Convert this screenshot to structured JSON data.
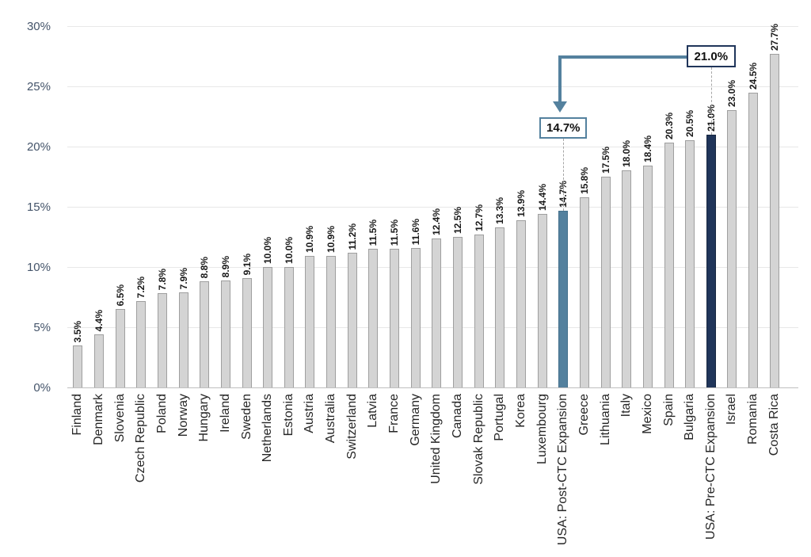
{
  "chart_data": {
    "type": "bar",
    "yticks": [
      "0%",
      "5%",
      "10%",
      "15%",
      "20%",
      "25%",
      "30%"
    ],
    "ylim": [
      0,
      30
    ],
    "unit": "percent",
    "grid": "horizontal",
    "categories": [
      "Finland",
      "Denmark",
      "Slovenia",
      "Czech Republic",
      "Poland",
      "Norway",
      "Hungary",
      "Ireland",
      "Sweden",
      "Netherlands",
      "Estonia",
      "Austria",
      "Australia",
      "Switzerland",
      "Latvia",
      "France",
      "Germany",
      "United Kingdom",
      "Canada",
      "Slovak Republic",
      "Portugal",
      "Korea",
      "Luxembourg",
      "USA: Post-CTC Expansion",
      "Greece",
      "Lithuania",
      "Italy",
      "Mexico",
      "Spain",
      "Bulgaria",
      "USA: Pre-CTC Expansion",
      "Israel",
      "Romania",
      "Costa Rica"
    ],
    "values": [
      3.5,
      4.4,
      6.5,
      7.2,
      7.8,
      7.9,
      8.8,
      8.9,
      9.1,
      10.0,
      10.0,
      10.9,
      10.9,
      11.2,
      11.5,
      11.5,
      11.6,
      12.4,
      12.5,
      12.7,
      13.3,
      13.9,
      14.4,
      14.7,
      15.8,
      17.5,
      18.0,
      18.4,
      20.3,
      20.5,
      21.0,
      23.0,
      24.5,
      27.7
    ],
    "value_labels": [
      "3.5%",
      "4.4%",
      "6.5%",
      "7.2%",
      "7.8%",
      "7.9%",
      "8.8%",
      "8.9%",
      "9.1%",
      "10.0%",
      "10.0%",
      "10.9%",
      "10.9%",
      "11.2%",
      "11.5%",
      "11.5%",
      "11.6%",
      "12.4%",
      "12.5%",
      "12.7%",
      "13.3%",
      "13.9%",
      "14.4%",
      "14.7%",
      "15.8%",
      "17.5%",
      "18.0%",
      "18.4%",
      "20.3%",
      "20.5%",
      "21.0%",
      "23.0%",
      "24.5%",
      "27.7%"
    ],
    "highlights": [
      {
        "index": 23,
        "label": "USA: Post-CTC Expansion",
        "color": "#54819e",
        "border": "#43708c"
      },
      {
        "index": 30,
        "label": "USA: Pre-CTC Expansion",
        "color": "#20355a",
        "border": "#16263f"
      }
    ],
    "annotations": [
      {
        "label": "14.7%",
        "index": 23,
        "border_color": "#54819e"
      },
      {
        "label": "21.0%",
        "index": 30,
        "border_color": "#20355a"
      }
    ],
    "arrow": {
      "from_index": 30,
      "to_index": 23,
      "color": "#54819e"
    },
    "colors": {
      "bar_fill": "#d4d4d4",
      "bar_border": "#9f9f9f",
      "gridline": "#e8e8e8",
      "axis_line": "#bfbfbf",
      "leader_line": "#a6a6a6",
      "ytick_text": "#44546a",
      "category_text": "#262626",
      "value_text": "#1a1a1a",
      "background": "#ffffff"
    }
  }
}
